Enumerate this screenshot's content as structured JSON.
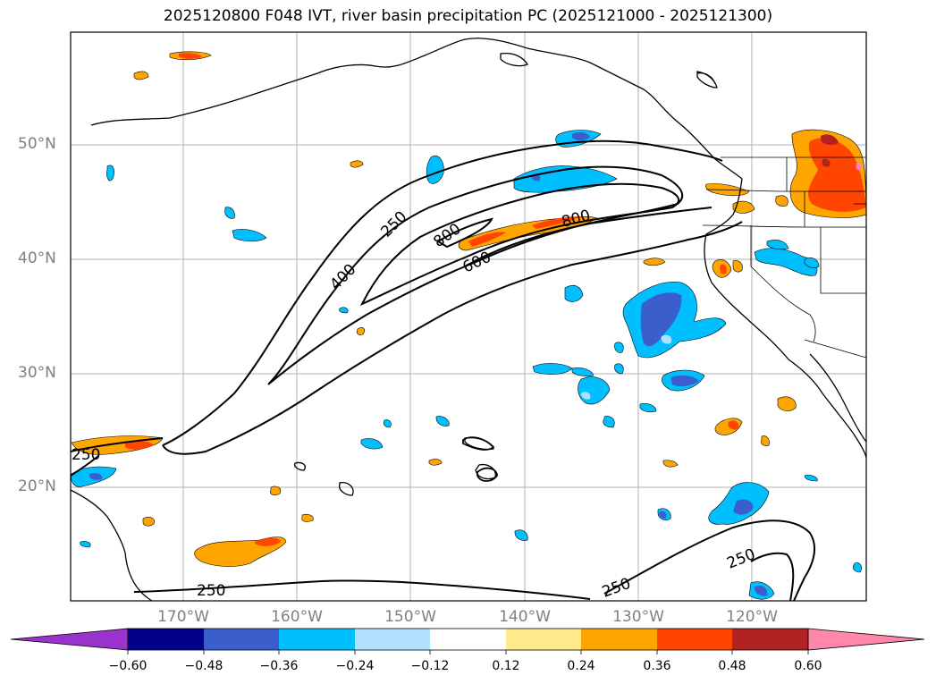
{
  "title": "2025120800 F048 IVT, river basin precipitation PC (2025121000 - 2025121300)",
  "lat_labels": [
    "50°N",
    "40°N",
    "30°N",
    "20°N"
  ],
  "lon_labels": [
    "170°W",
    "160°W",
    "150°W",
    "140°W",
    "130°W",
    "120°W"
  ],
  "contour_labels": [
    "250",
    "400",
    "800",
    "600",
    "800",
    "250",
    "250",
    "250",
    "250"
  ],
  "colorbar": {
    "ticks": [
      "−0.60",
      "−0.48",
      "−0.36",
      "−0.24",
      "−0.12",
      "0.12",
      "0.24",
      "0.36",
      "0.48",
      "0.60"
    ],
    "colors": [
      "#9933cc",
      "#00008b",
      "#3a5fcd",
      "#00bfff",
      "#b0e2ff",
      "#ffffff",
      "#ffeb8c",
      "#ffa500",
      "#ff4500",
      "#b22222",
      "#ff88aa"
    ]
  },
  "colors": {
    "orange": "#ffa500",
    "red_orange": "#ff4500",
    "deep_sky_blue": "#00bfff",
    "royal_blue": "#3a5fcd",
    "grid": "#b0b0b0"
  }
}
